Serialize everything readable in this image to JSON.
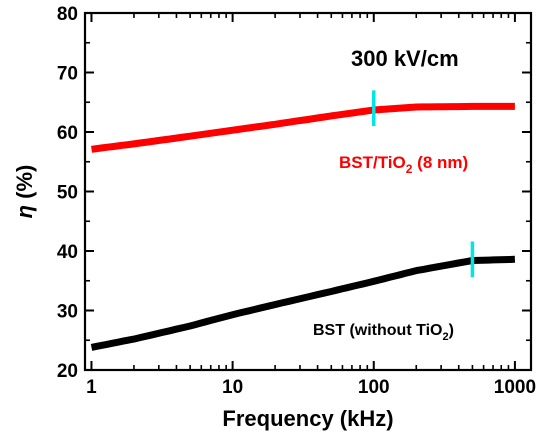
{
  "chart_data": {
    "type": "line",
    "xlabel": "Frequency (kHz)",
    "ylabel_symbol": "η",
    "ylabel_unit": " (%)",
    "xscale": "log",
    "xlim": [
      0.9,
      1300
    ],
    "ylim": [
      20,
      80
    ],
    "xticks": [
      1,
      10,
      100,
      1000
    ],
    "xtick_labels": [
      "1",
      "10",
      "100",
      "1000"
    ],
    "yticks": [
      20,
      30,
      40,
      50,
      60,
      70,
      80
    ],
    "ytick_labels": [
      "20",
      "30",
      "40",
      "50",
      "60",
      "70",
      "80"
    ],
    "grid": false,
    "legend": "none",
    "annotations": {
      "field": "300 kV/cm",
      "red_label_pre": "BST/TiO",
      "red_label_sub": "2",
      "red_label_post": " (8 nm)",
      "black_label_pre": "BST (without TiO",
      "black_label_sub": "2",
      "black_label_post": ")"
    },
    "series": [
      {
        "color": "#ff0000",
        "x": [
          1,
          2,
          5,
          10,
          20,
          50,
          100,
          200,
          500,
          1000
        ],
        "y": [
          57.1,
          58.0,
          59.3,
          60.3,
          61.3,
          62.7,
          63.7,
          64.2,
          64.3,
          64.3
        ]
      },
      {
        "color": "#000000",
        "x": [
          1,
          2,
          5,
          10,
          20,
          50,
          100,
          200,
          500,
          1000
        ],
        "y": [
          23.8,
          25.2,
          27.4,
          29.3,
          31.0,
          33.2,
          34.9,
          36.7,
          38.4,
          38.6
        ]
      }
    ],
    "markers": [
      {
        "color": "#00e5e5",
        "x": 100,
        "y": 64.0,
        "half_height": 3.0
      },
      {
        "color": "#00e5e5",
        "x": 500,
        "y": 38.6,
        "half_height": 3.0
      }
    ]
  }
}
